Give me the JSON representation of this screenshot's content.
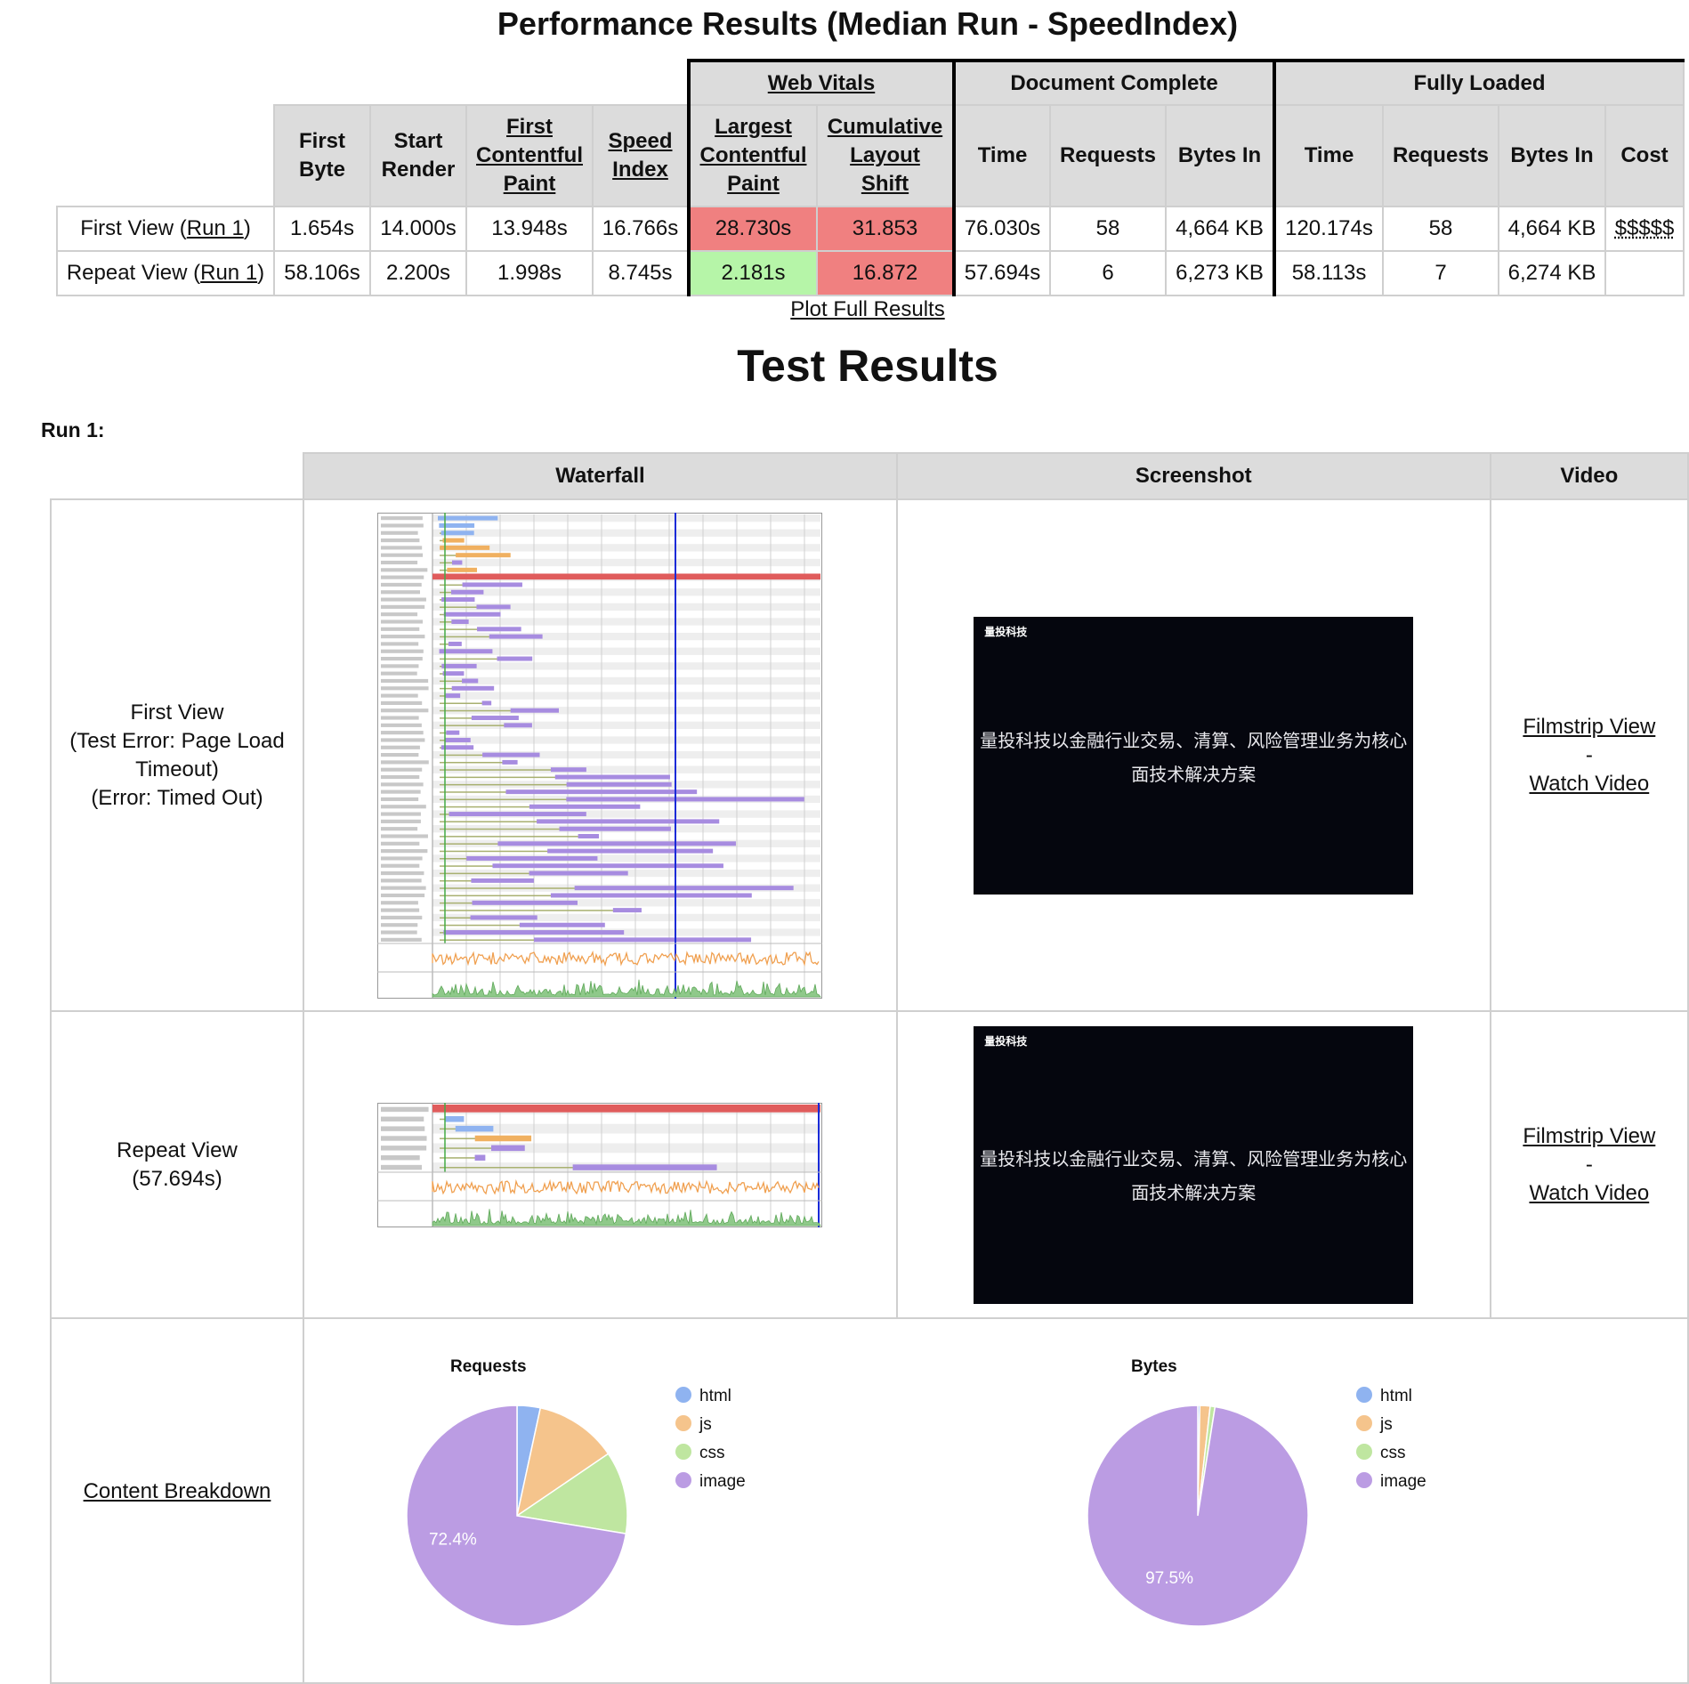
{
  "perf_title": "Performance Results (Median Run - SpeedIndex)",
  "groups": {
    "web_vitals": "Web Vitals",
    "document_complete": "Document Complete",
    "fully_loaded": "Fully Loaded"
  },
  "headers": {
    "first_byte": [
      "First",
      "Byte"
    ],
    "start_render": [
      "Start",
      "Render"
    ],
    "fcp": [
      "First",
      "Contentful",
      "Paint"
    ],
    "speed_index": [
      "Speed",
      "Index"
    ],
    "lcp": [
      "Largest",
      "Contentful",
      "Paint"
    ],
    "cls": [
      "Cumulative",
      "Layout",
      "Shift"
    ],
    "dc_time": "Time",
    "dc_requests": "Requests",
    "dc_bytes": "Bytes In",
    "fl_time": "Time",
    "fl_requests": "Requests",
    "fl_bytes": "Bytes In",
    "cost": "Cost"
  },
  "rows": [
    {
      "label_prefix": "First View (",
      "run_link": "Run 1",
      "label_suffix": ")",
      "first_byte": "1.654s",
      "start_render": "14.000s",
      "fcp": "13.948s",
      "speed_index": "16.766s",
      "lcp": "28.730s",
      "cls": "31.853",
      "dc_time": "76.030s",
      "dc_requests": "58",
      "dc_bytes": "4,664 KB",
      "fl_time": "120.174s",
      "fl_requests": "58",
      "fl_bytes": "4,664 KB",
      "cost": "$$$$$"
    },
    {
      "label_prefix": "Repeat View (",
      "run_link": "Run 1",
      "label_suffix": ")",
      "first_byte": "58.106s",
      "start_render": "2.200s",
      "fcp": "1.998s",
      "speed_index": "8.745s",
      "lcp": "2.181s",
      "cls": "16.872",
      "dc_time": "57.694s",
      "dc_requests": "6",
      "dc_bytes": "6,273 KB",
      "fl_time": "58.113s",
      "fl_requests": "7",
      "fl_bytes": "6,274 KB",
      "cost": ""
    }
  ],
  "status_colors": {
    "bad": "#f08080",
    "good": "#b6f5a8"
  },
  "plot_link": "Plot Full Results",
  "test_title": "Test Results",
  "run_label": "Run 1:",
  "result_headers": {
    "waterfall": "Waterfall",
    "screenshot": "Screenshot",
    "video": "Video"
  },
  "first_view": {
    "lines": [
      "First View",
      "(Test Error: Page Load",
      "Timeout)",
      "(Error: Timed Out)"
    ],
    "filmstrip": "Filmstrip View",
    "sep": "-",
    "watch": "Watch Video"
  },
  "repeat_view": {
    "lines": [
      "Repeat View",
      "(57.694s)"
    ],
    "filmstrip": "Filmstrip View",
    "sep": "-",
    "watch": "Watch Video"
  },
  "screenshot_text": {
    "logo": "量投科技",
    "line1": "量投科技以金融行业交易、清算、风险管理业务为核心",
    "line2": "面技术解决方案"
  },
  "content_breakdown": "Content Breakdown",
  "chart_data": [
    {
      "type": "pie",
      "title": "Requests",
      "labels": [
        "html",
        "js",
        "css",
        "image"
      ],
      "values": [
        3.4,
        12.1,
        12.1,
        72.4
      ],
      "colors": [
        "#8fb3f0",
        "#f5c48c",
        "#bfe6a0",
        "#bb9ce3"
      ],
      "data_labels": [
        "",
        "",
        "",
        "72.4%"
      ],
      "legend": "right"
    },
    {
      "type": "pie",
      "title": "Bytes",
      "labels": [
        "html",
        "js",
        "css",
        "image"
      ],
      "values": [
        0.3,
        1.5,
        0.7,
        97.5
      ],
      "colors": [
        "#8fb3f0",
        "#f5c48c",
        "#bfe6a0",
        "#bb9ce3"
      ],
      "data_labels": [
        "",
        "",
        "",
        "97.5%"
      ],
      "legend": "right"
    }
  ]
}
